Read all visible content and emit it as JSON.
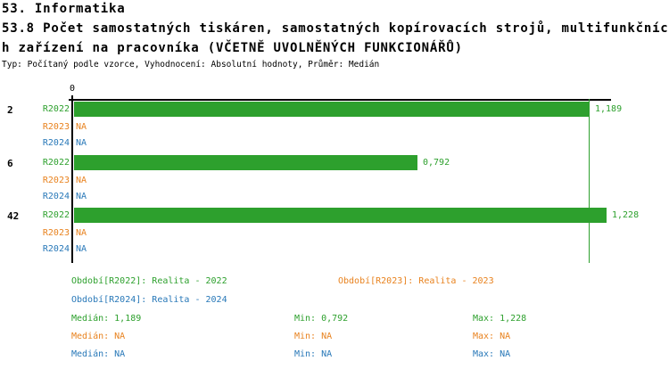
{
  "header": {
    "line1": "53. Informatika",
    "line2": "53.8 Počet samostatných tiskáren, samostatných kopírovacích strojů, multifunkčníc",
    "line3": "h zařízení na pracovníka (VČETNĚ UVOLNĚNÝCH FUNKCIONÁŘŮ)",
    "meta": "Typ: Počítaný podle vzorce, Vyhodnocení: Absolutní hodnoty, Průměr: Medián"
  },
  "colors": {
    "R2022": "#2DA02D",
    "R2023": "#E8821E",
    "R2024": "#2878B8",
    "axis": "#000000",
    "median_line": "#2DA02D",
    "background": "#FFFFFF"
  },
  "chart_data": {
    "type": "bar",
    "orientation": "horizontal",
    "value_axis": {
      "min": 0,
      "tick_labels": [
        "0"
      ]
    },
    "median_line_value": 1.189,
    "series_names": [
      "R2022",
      "R2023",
      "R2024"
    ],
    "groups": [
      {
        "label": "2",
        "bars": [
          {
            "series": "R2022",
            "value": 1.189,
            "display": "1,189"
          },
          {
            "series": "R2023",
            "value": null,
            "display": "NA"
          },
          {
            "series": "R2024",
            "value": null,
            "display": "NA"
          }
        ]
      },
      {
        "label": "6",
        "bars": [
          {
            "series": "R2022",
            "value": 0.792,
            "display": "0,792"
          },
          {
            "series": "R2023",
            "value": null,
            "display": "NA"
          },
          {
            "series": "R2024",
            "value": null,
            "display": "NA"
          }
        ]
      },
      {
        "label": "42",
        "bars": [
          {
            "series": "R2022",
            "value": 1.228,
            "display": "1,228"
          },
          {
            "series": "R2023",
            "value": null,
            "display": "NA"
          },
          {
            "series": "R2024",
            "value": null,
            "display": "NA"
          }
        ]
      }
    ],
    "summary": {
      "median": 1.189,
      "min": 0.792,
      "max": 1.228
    }
  },
  "legend": {
    "r2022": "Období[R2022]: Realita - 2022",
    "r2023": "Období[R2023]: Realita - 2023",
    "r2024": "Období[R2024]: Realita - 2024"
  },
  "stats": {
    "rows": [
      {
        "series": "R2022",
        "median": "Medián: 1,189",
        "min": "Min: 0,792",
        "max": "Max: 1,228"
      },
      {
        "series": "R2023",
        "median": "Medián: NA",
        "min": "Min: NA",
        "max": "Max: NA"
      },
      {
        "series": "R2024",
        "median": "Medián: NA",
        "min": "Min: NA",
        "max": "Max: NA"
      }
    ]
  }
}
